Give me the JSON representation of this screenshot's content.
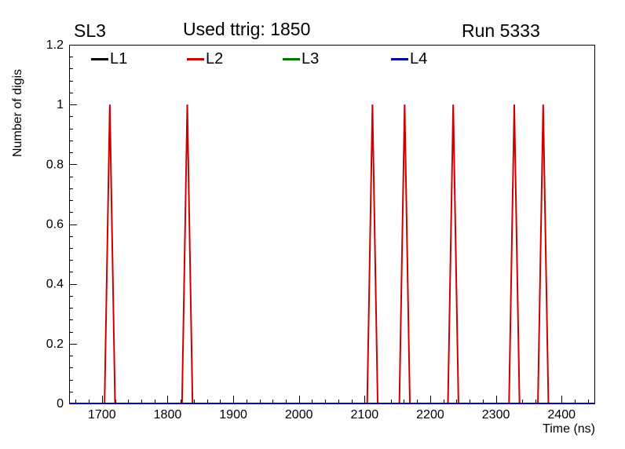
{
  "header": {
    "left": "SL3",
    "center": "Used ttrig: 1850",
    "right": "Run 5333"
  },
  "chart_data": {
    "type": "line",
    "title": "Used ttrig: 1850",
    "subtitle_left": "SL3",
    "subtitle_right": "Run 5333",
    "xlabel": "Time (ns)",
    "ylabel": "Number of digis",
    "xlim": [
      1650,
      2450
    ],
    "ylim": [
      0,
      1.2
    ],
    "x_major_ticks": [
      1700,
      1800,
      1900,
      2000,
      2100,
      2200,
      2300,
      2400
    ],
    "x_minor_step": 20,
    "y_major_ticks": [
      0,
      0.2,
      0.4,
      0.6,
      0.8,
      1,
      1.2
    ],
    "y_tick_labels": [
      "0",
      "0.2",
      "0.4",
      "0.6",
      "0.8",
      "1",
      "1.2"
    ],
    "y_minor_step": 0.04,
    "grid": false,
    "legend_position": "top-inside",
    "series": [
      {
        "name": "L1",
        "color": "#000000",
        "baseline": 0,
        "peak_height": 1,
        "peak_halfwidth_ns": 8,
        "peaks": []
      },
      {
        "name": "L2",
        "color": "#cc0000",
        "baseline": 0,
        "peak_height": 1,
        "peak_halfwidth_ns": 8,
        "peaks": [
          1712,
          1830,
          2112,
          2161,
          2235,
          2328,
          2372
        ]
      },
      {
        "name": "L3",
        "color": "#007700",
        "baseline": 0,
        "peak_height": 1,
        "peak_halfwidth_ns": 8,
        "peaks": []
      },
      {
        "name": "L4",
        "color": "#0000aa",
        "baseline": 0,
        "peak_height": 1,
        "peak_halfwidth_ns": 8,
        "peaks": []
      }
    ]
  }
}
